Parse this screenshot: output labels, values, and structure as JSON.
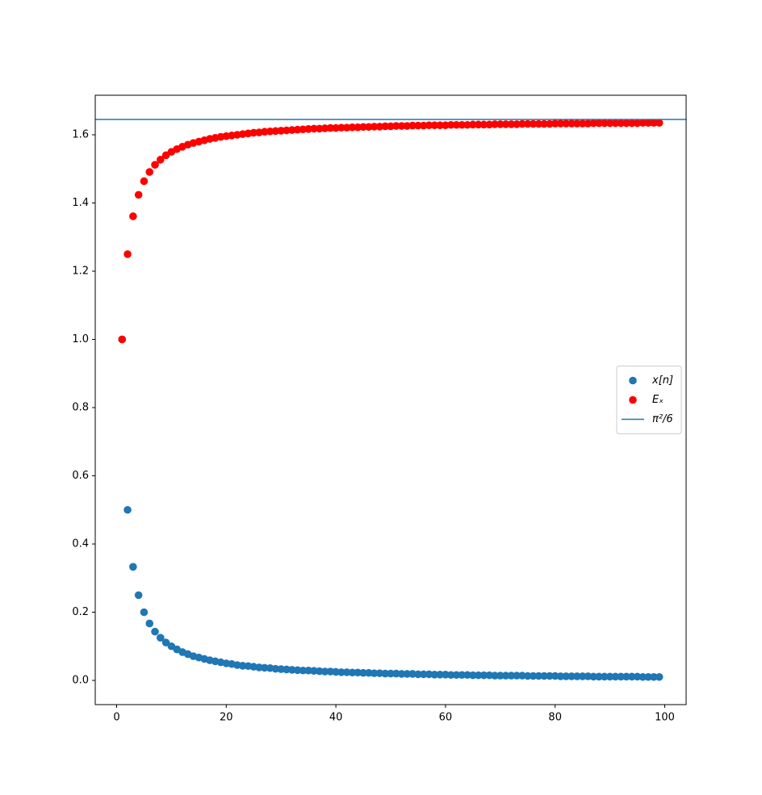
{
  "chart_data": {
    "type": "scatter",
    "x": [
      1,
      2,
      3,
      4,
      5,
      6,
      7,
      8,
      9,
      10,
      11,
      12,
      13,
      14,
      15,
      16,
      17,
      18,
      19,
      20,
      21,
      22,
      23,
      24,
      25,
      26,
      27,
      28,
      29,
      30,
      31,
      32,
      33,
      34,
      35,
      36,
      37,
      38,
      39,
      40,
      41,
      42,
      43,
      44,
      45,
      46,
      47,
      48,
      49,
      50,
      51,
      52,
      53,
      54,
      55,
      56,
      57,
      58,
      59,
      60,
      61,
      62,
      63,
      64,
      65,
      66,
      67,
      68,
      69,
      70,
      71,
      72,
      73,
      74,
      75,
      76,
      77,
      78,
      79,
      80,
      81,
      82,
      83,
      84,
      85,
      86,
      87,
      88,
      89,
      90,
      91,
      92,
      93,
      94,
      95,
      96,
      97,
      98,
      99
    ],
    "series": [
      {
        "name": "x[n]",
        "color": "#1f77b4",
        "values": [
          1,
          0.5,
          0.333,
          0.25,
          0.2,
          0.167,
          0.143,
          0.125,
          0.111,
          0.1,
          0.091,
          0.083,
          0.077,
          0.071,
          0.067,
          0.063,
          0.059,
          0.056,
          0.053,
          0.05,
          0.048,
          0.045,
          0.043,
          0.042,
          0.04,
          0.038,
          0.037,
          0.036,
          0.034,
          0.033,
          0.032,
          0.031,
          0.03,
          0.029,
          0.029,
          0.028,
          0.027,
          0.026,
          0.026,
          0.025,
          0.024,
          0.024,
          0.023,
          0.023,
          0.022,
          0.022,
          0.021,
          0.021,
          0.02,
          0.02,
          0.02,
          0.019,
          0.019,
          0.019,
          0.018,
          0.018,
          0.018,
          0.017,
          0.017,
          0.017,
          0.016,
          0.016,
          0.016,
          0.016,
          0.015,
          0.015,
          0.015,
          0.015,
          0.014,
          0.014,
          0.014,
          0.014,
          0.014,
          0.014,
          0.013,
          0.013,
          0.013,
          0.013,
          0.013,
          0.013,
          0.012,
          0.012,
          0.012,
          0.012,
          0.012,
          0.012,
          0.011,
          0.011,
          0.011,
          0.011,
          0.011,
          0.011,
          0.011,
          0.011,
          0.011,
          0.01,
          0.01,
          0.01,
          0.01
        ]
      },
      {
        "name": "Eₓ",
        "color": "#ff0000",
        "values": [
          1,
          1.25,
          1.361,
          1.424,
          1.464,
          1.491,
          1.512,
          1.527,
          1.54,
          1.55,
          1.558,
          1.565,
          1.571,
          1.576,
          1.58,
          1.584,
          1.588,
          1.591,
          1.594,
          1.596,
          1.598,
          1.6,
          1.602,
          1.604,
          1.606,
          1.607,
          1.609,
          1.61,
          1.611,
          1.612,
          1.613,
          1.614,
          1.615,
          1.616,
          1.617,
          1.618,
          1.618,
          1.619,
          1.62,
          1.62,
          1.621,
          1.621,
          1.622,
          1.622,
          1.623,
          1.623,
          1.624,
          1.624,
          1.625,
          1.625,
          1.626,
          1.626,
          1.626,
          1.627,
          1.627,
          1.627,
          1.628,
          1.628,
          1.628,
          1.628,
          1.629,
          1.629,
          1.629,
          1.629,
          1.63,
          1.63,
          1.63,
          1.63,
          1.631,
          1.631,
          1.631,
          1.631,
          1.631,
          1.632,
          1.632,
          1.632,
          1.632,
          1.632,
          1.632,
          1.633,
          1.633,
          1.633,
          1.633,
          1.633,
          1.633,
          1.633,
          1.634,
          1.634,
          1.634,
          1.634,
          1.634,
          1.634,
          1.634,
          1.634,
          1.634,
          1.635,
          1.635,
          1.635,
          1.635
        ]
      }
    ],
    "hlines": [
      {
        "name": "π²/6",
        "value": 1.6449,
        "color": "#1f77b4"
      }
    ],
    "xlim": [
      -3.9,
      103.9
    ],
    "ylim": [
      -0.071,
      1.716
    ],
    "xticks": [
      0,
      20,
      40,
      60,
      80,
      100
    ],
    "yticks": [
      {
        "value": 0,
        "label": "0.0"
      },
      {
        "value": 0.2,
        "label": "0.2"
      },
      {
        "value": 0.4,
        "label": "0.4"
      },
      {
        "value": 0.6,
        "label": "0.6"
      },
      {
        "value": 0.8,
        "label": "0.8"
      },
      {
        "value": 1,
        "label": "1.0"
      },
      {
        "value": 1.2,
        "label": "1.2"
      },
      {
        "value": 1.4,
        "label": "1.4"
      },
      {
        "value": 1.6,
        "label": "1.6"
      }
    ],
    "legend": "center right"
  }
}
